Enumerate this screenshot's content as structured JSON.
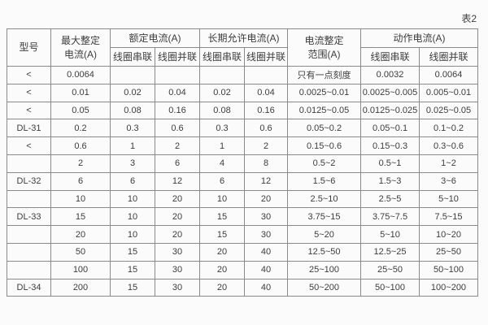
{
  "caption": "表2",
  "colors": {
    "background": "#fbfbfb",
    "border": "#8a8a8a",
    "text": "#3d3d3d"
  },
  "table": {
    "headers": {
      "model": "型号",
      "max_setting_line1": "最大整定",
      "max_setting_line2": "电流(A)",
      "rated_group": "额定电流(A)",
      "longterm_group": "长期允许电流(A)",
      "range_line1": "电流整定",
      "range_line2": "范围(A)",
      "operating_group": "动作电流(A)",
      "coil_series": "线圈串联",
      "coil_parallel": "线圈并联"
    }
  },
  "chart_data": {
    "type": "table",
    "title": "表2",
    "columns": [
      "型号",
      "最大整定电流(A)",
      "额定电流(A) 线圈串联",
      "额定电流(A) 线圈并联",
      "长期允许电流(A) 线圈串联",
      "长期允许电流(A) 线圈并联",
      "电流整定范围(A)",
      "动作电流(A) 线圈串联",
      "动作电流(A) 线圈并联"
    ],
    "rows": [
      [
        "<",
        "0.0064",
        "",
        "",
        "",
        "",
        "只有一点刻度",
        "0.0032",
        "0.0064"
      ],
      [
        "<",
        "0.01",
        "0.02",
        "0.04",
        "0.02",
        "0.04",
        "0.0025~0.01",
        "0.0025~0.005",
        "0.005~0.01"
      ],
      [
        "<",
        "0.05",
        "0.08",
        "0.16",
        "0.08",
        "0.16",
        "0.0125~0.05",
        "0.0125~0.025",
        "0.025~0.05"
      ],
      [
        "DL-31",
        "0.2",
        "0.3",
        "0.6",
        "0.3",
        "0.6",
        "0.05~0.2",
        "0.05~0.1",
        "0.1~0.2"
      ],
      [
        "<",
        "0.6",
        "1",
        "2",
        "1",
        "2",
        "0.15~0.6",
        "0.15~0.3",
        "0.3~0.6"
      ],
      [
        "",
        "2",
        "3",
        "6",
        "4",
        "8",
        "0.5~2",
        "0.5~1",
        "1~2"
      ],
      [
        "DL-32",
        "6",
        "6",
        "12",
        "6",
        "12",
        "1.5~6",
        "1.5~3",
        "3~6"
      ],
      [
        "",
        "10",
        "10",
        "20",
        "10",
        "20",
        "2.5~10",
        "2.5~5",
        "5~10"
      ],
      [
        "DL-33",
        "15",
        "10",
        "20",
        "15",
        "30",
        "3.75~15",
        "3.75~7.5",
        "7.5~15"
      ],
      [
        "",
        "20",
        "10",
        "20",
        "15",
        "30",
        "5~20",
        "5~10",
        "10~20"
      ],
      [
        "",
        "50",
        "15",
        "30",
        "20",
        "40",
        "12.5~50",
        "12.5~25",
        "25~50"
      ],
      [
        "",
        "100",
        "15",
        "30",
        "20",
        "40",
        "25~100",
        "25~50",
        "50~100"
      ],
      [
        "DL-34",
        "200",
        "15",
        "30",
        "20",
        "40",
        "50~200",
        "50~100",
        "100~200"
      ]
    ]
  }
}
